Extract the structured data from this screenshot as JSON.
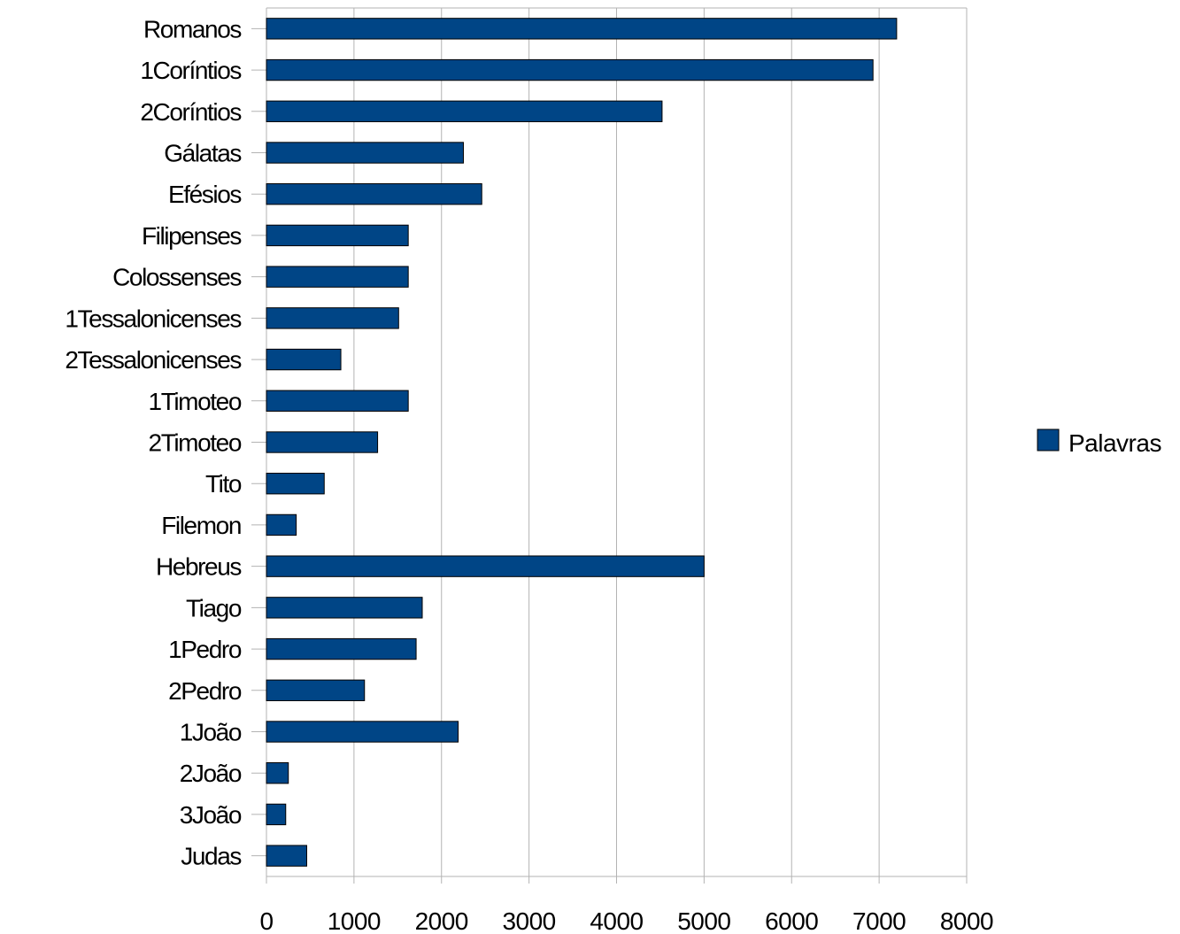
{
  "chart_data": {
    "type": "bar",
    "orientation": "horizontal",
    "categories": [
      "Romanos",
      "1Coríntios",
      "2Coríntios",
      "Gálatas",
      "Efésios",
      "Filipenses",
      "Colossenses",
      "1Tessalonicenses",
      "2Tessalonicenses",
      "1Timoteo",
      "2Timoteo",
      "Tito",
      "Filemon",
      "Hebreus",
      "Tiago",
      "1Pedro",
      "2Pedro",
      "1João",
      "2João",
      "3João",
      "Judas"
    ],
    "series": [
      {
        "name": "Palavras",
        "color": "#004586",
        "values": [
          7200,
          6930,
          4520,
          2250,
          2460,
          1620,
          1620,
          1510,
          850,
          1620,
          1270,
          660,
          340,
          5000,
          1780,
          1710,
          1120,
          2190,
          250,
          220,
          460
        ]
      }
    ],
    "xlim": [
      0,
      8000
    ],
    "xticks": [
      "0",
      "1000",
      "2000",
      "3000",
      "4000",
      "5000",
      "6000",
      "7000",
      "8000"
    ],
    "grid": "vertical",
    "legend": "right"
  }
}
